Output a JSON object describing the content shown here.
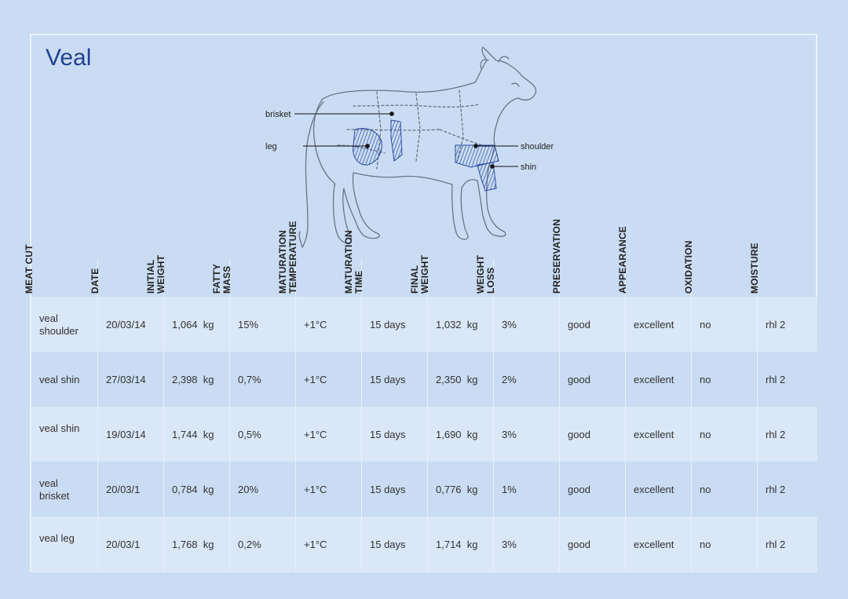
{
  "title": "Veal",
  "diagram_labels": {
    "brisket": "brisket",
    "leg": "leg",
    "shoulder": "shoulder",
    "shin": "shin"
  },
  "columns": [
    "MEAT CUT",
    "DATE",
    "INITIAL\nWEIGHT",
    "FATTY\nMASS",
    "MATURATION\nTEMPERATURE",
    "MATURATION\nTIME",
    "FINAL\nWEIGHT",
    "WEIGHT\nLOSS",
    "PRESERVATION",
    "APPEARANCE",
    "OXIDATION",
    "MOISTURE"
  ],
  "rows": [
    {
      "cut": "veal\nshoulder",
      "date": "20/03/14",
      "initial_weight": "1,064  kg",
      "fatty_mass": "15%",
      "temperature": "+1°C",
      "time": "15 days",
      "final_weight": "1,032  kg",
      "weight_loss": "3%",
      "preservation": "good",
      "appearance": "excellent",
      "oxidation": "no",
      "moisture": "rhl 2"
    },
    {
      "cut": "veal shin",
      "date": "27/03/14",
      "initial_weight": "2,398  kg",
      "fatty_mass": "0,7%",
      "temperature": "+1°C",
      "time": "15 days",
      "final_weight": "2,350  kg",
      "weight_loss": "2%",
      "preservation": "good",
      "appearance": "excellent",
      "oxidation": "no",
      "moisture": "rhl 2"
    },
    {
      "cut": "veal shin",
      "date": "19/03/14",
      "initial_weight": "1,744  kg",
      "fatty_mass": "0,5%",
      "temperature": "+1°C",
      "time": "15 days",
      "final_weight": "1,690  kg",
      "weight_loss": "3%",
      "preservation": "good",
      "appearance": "excellent",
      "oxidation": "no",
      "moisture": "rhl 2"
    },
    {
      "cut": "veal\nbrisket",
      "date": "20/03/1",
      "initial_weight": "0,784  kg",
      "fatty_mass": "20%",
      "temperature": "+1°C",
      "time": "15 days",
      "final_weight": "0,776  kg",
      "weight_loss": "1%",
      "preservation": "good",
      "appearance": "excellent",
      "oxidation": "no",
      "moisture": "rhl 2"
    },
    {
      "cut": "veal leg",
      "date": "20/03/1",
      "initial_weight": "1,768  kg",
      "fatty_mass": "0,2%",
      "temperature": "+1°C",
      "time": "15 days",
      "final_weight": "1,714  kg",
      "weight_loss": "3%",
      "preservation": "good",
      "appearance": "excellent",
      "oxidation": "no",
      "moisture": "rhl 2"
    }
  ],
  "colors": {
    "background": "#c9dcf3",
    "row_light": "#d9e7f7",
    "title": "#23408f",
    "grid": "#e8f0fa",
    "hatch": "#2a4aa0"
  }
}
